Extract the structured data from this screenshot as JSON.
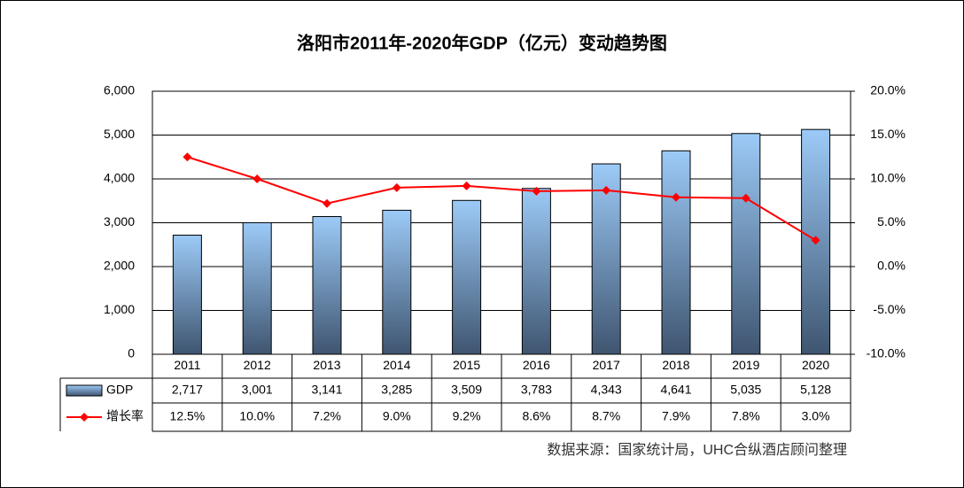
{
  "chart_data": {
    "type": "bar_line",
    "title": "洛阳市2011年-2020年GDP（亿元）变动趋势图",
    "source": "数据来源：国家统计局，UHC合纵酒店顾问整理",
    "categories": [
      "2011",
      "2012",
      "2013",
      "2014",
      "2015",
      "2016",
      "2017",
      "2018",
      "2019",
      "2020"
    ],
    "series": [
      {
        "name": "GDP",
        "type": "bar",
        "color": "#9ccaf7",
        "values": [
          2717,
          3001,
          3141,
          3285,
          3509,
          3783,
          4343,
          4641,
          5035,
          5128
        ],
        "value_labels": [
          "2,717",
          "3,001",
          "3,141",
          "3,285",
          "3,509",
          "3,783",
          "4,343",
          "4,641",
          "5,035",
          "5,128"
        ]
      },
      {
        "name": "增长率",
        "type": "line",
        "axis": "y2",
        "color": "#ff0000",
        "values": [
          12.5,
          10.0,
          7.2,
          9.0,
          9.2,
          8.6,
          8.7,
          7.9,
          7.8,
          3.0
        ],
        "value_labels": [
          "12.5%",
          "10.0%",
          "7.2%",
          "9.0%",
          "9.2%",
          "8.6%",
          "8.7%",
          "7.9%",
          "7.8%",
          "3.0%"
        ]
      }
    ],
    "ylim": [
      0,
      6000
    ],
    "yticks": [
      0,
      {
        "value": 1000,
        "label": "1,000"
      },
      {
        "value": 2000,
        "label": "2,000"
      },
      {
        "value": 3000,
        "label": "3,000"
      },
      {
        "value": 4000,
        "label": "4,000"
      },
      {
        "value": 5000,
        "label": "5,000"
      },
      {
        "value": 6000,
        "label": "6,000"
      }
    ],
    "y2lim": [
      -10,
      20
    ],
    "y2ticks": [
      {
        "value": -10,
        "label": "-10.0%"
      },
      {
        "value": -5,
        "label": "-5.0%"
      },
      {
        "value": 0,
        "label": "0.0%"
      },
      {
        "value": 5,
        "label": "5.0%"
      },
      {
        "value": 10,
        "label": "10.0%"
      },
      {
        "value": 15,
        "label": "15.0%"
      },
      {
        "value": 20,
        "label": "20.0%"
      }
    ],
    "grid": true
  }
}
